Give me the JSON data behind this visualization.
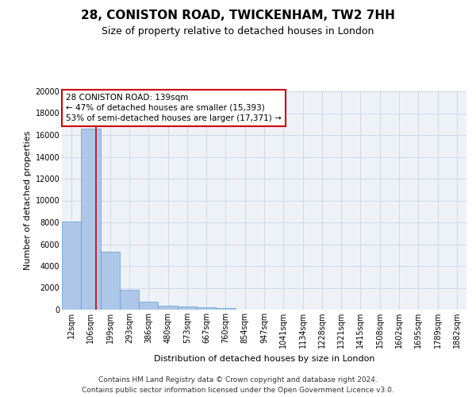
{
  "title_line1": "28, CONISTON ROAD, TWICKENHAM, TW2 7HH",
  "title_line2": "Size of property relative to detached houses in London",
  "xlabel": "Distribution of detached houses by size in London",
  "ylabel": "Number of detached properties",
  "categories": [
    "12sqm",
    "106sqm",
    "199sqm",
    "293sqm",
    "386sqm",
    "480sqm",
    "573sqm",
    "667sqm",
    "760sqm",
    "854sqm",
    "947sqm",
    "1041sqm",
    "1134sqm",
    "1228sqm",
    "1321sqm",
    "1415sqm",
    "1508sqm",
    "1602sqm",
    "1695sqm",
    "1789sqm",
    "1882sqm"
  ],
  "values": [
    8100,
    16600,
    5300,
    1850,
    700,
    370,
    280,
    200,
    160,
    0,
    0,
    0,
    0,
    0,
    0,
    0,
    0,
    0,
    0,
    0,
    0
  ],
  "bar_color": "#aec6e8",
  "bar_edge_color": "#5a9fd4",
  "grid_color": "#d0d8e8",
  "background_color": "#eef2f8",
  "annotation_text": "28 CONISTON ROAD: 139sqm\n← 47% of detached houses are smaller (15,393)\n53% of semi-detached houses are larger (17,371) →",
  "annotation_box_color": "#ffffff",
  "annotation_box_edge": "#cc0000",
  "property_line_x": 1.27,
  "ylim": [
    0,
    20000
  ],
  "yticks": [
    0,
    2000,
    4000,
    6000,
    8000,
    10000,
    12000,
    14000,
    16000,
    18000,
    20000
  ],
  "footer_line1": "Contains HM Land Registry data © Crown copyright and database right 2024.",
  "footer_line2": "Contains public sector information licensed under the Open Government Licence v3.0.",
  "title_fontsize": 11,
  "subtitle_fontsize": 9,
  "axis_label_fontsize": 8,
  "tick_fontsize": 7,
  "annotation_fontsize": 7.5,
  "footer_fontsize": 6.5
}
